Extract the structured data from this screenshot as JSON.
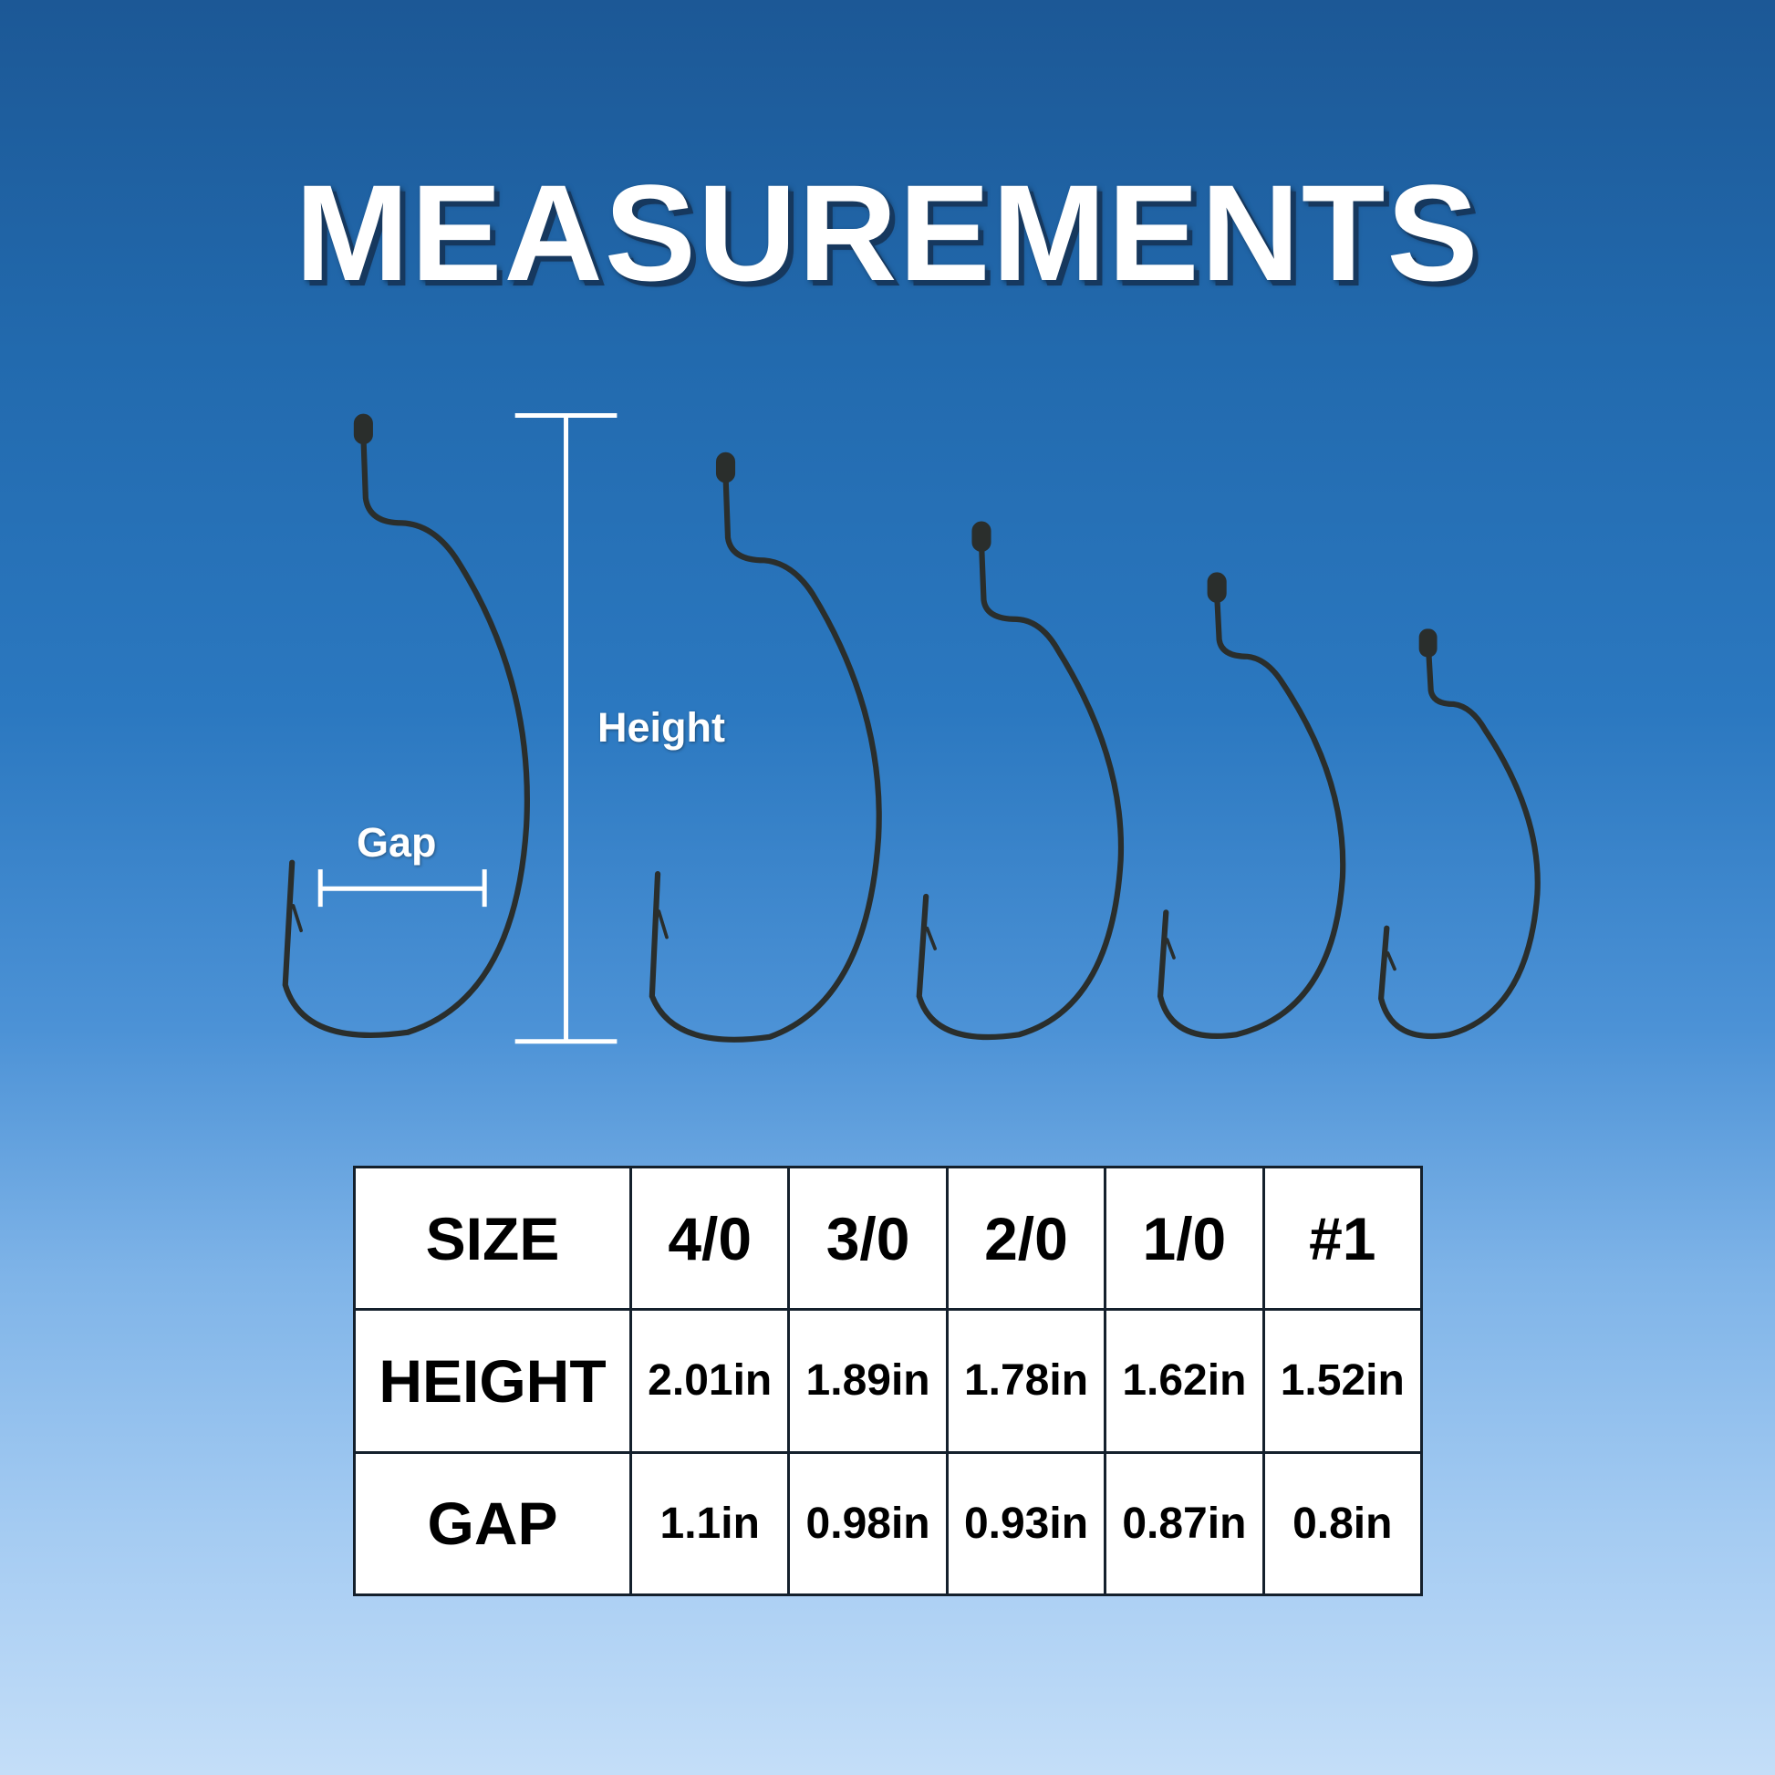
{
  "title": "MEASUREMENTS",
  "labels": {
    "height": "Height",
    "gap": "Gap"
  },
  "colors": {
    "hook": "#2a2e2c",
    "background_top": "#1c5896",
    "background_bottom": "#c4def8",
    "text": "#ffffff"
  },
  "table": {
    "rows": [
      {
        "header": "SIZE",
        "values": [
          "4/0",
          "3/0",
          "2/0",
          "1/0",
          "#1"
        ]
      },
      {
        "header": "HEIGHT",
        "values": [
          "2.01in",
          "1.89in",
          "1.78in",
          "1.62in",
          "1.52in"
        ]
      },
      {
        "header": "GAP",
        "values": [
          "1.1in",
          "0.98in",
          "0.93in",
          "0.87in",
          "0.8in"
        ]
      }
    ]
  }
}
